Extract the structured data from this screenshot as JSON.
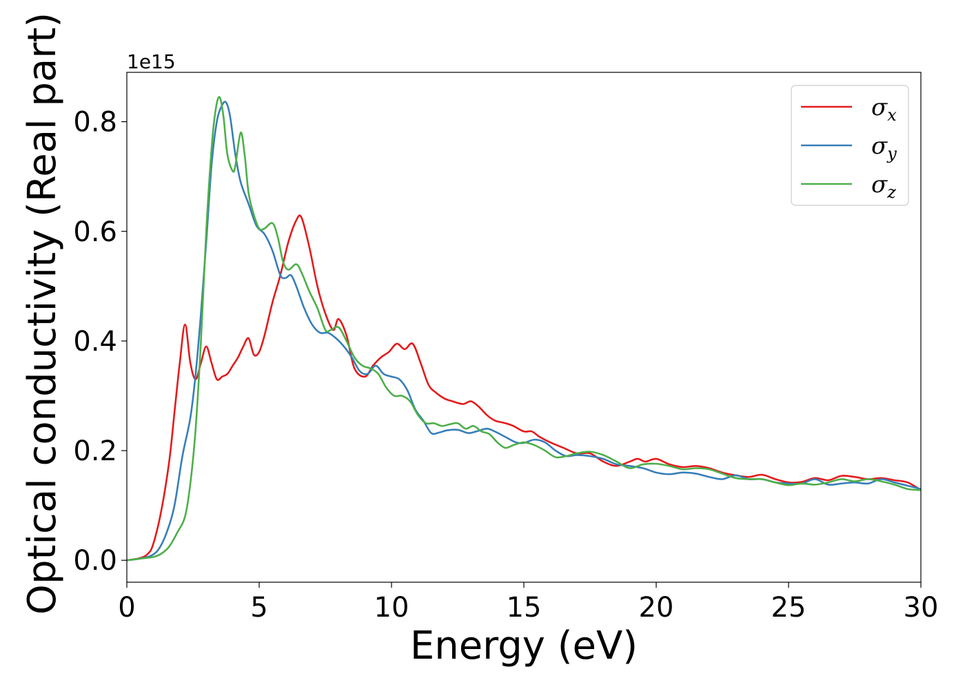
{
  "chart_data": {
    "type": "line",
    "title": "",
    "xlabel": "Energy (eV)",
    "ylabel": "Optical conductivity (Real part)",
    "y_offset_label": "1e15",
    "y_scale_factor": 1000000000000000.0,
    "xlim": [
      0,
      30
    ],
    "ylim": [
      -0.04,
      0.89
    ],
    "x_ticks": [
      0,
      5,
      10,
      15,
      20,
      25,
      30
    ],
    "x_tick_labels": [
      "0",
      "5",
      "10",
      "15",
      "20",
      "25",
      "30"
    ],
    "y_ticks": [
      0.0,
      0.2,
      0.4,
      0.6,
      0.8
    ],
    "y_tick_labels": [
      "0.0",
      "0.2",
      "0.4",
      "0.6",
      "0.8"
    ],
    "grid": false,
    "legend_position": "top-right",
    "series": [
      {
        "name": "σx",
        "symbol": "σ",
        "subscript": "x",
        "color": "#e41a1c",
        "x": [
          0,
          0.5,
          0.8,
          1.0,
          1.3,
          1.6,
          1.8,
          2.0,
          2.2,
          2.4,
          2.6,
          2.8,
          3.0,
          3.2,
          3.4,
          3.6,
          3.8,
          4.0,
          4.2,
          4.4,
          4.6,
          4.8,
          5.0,
          5.2,
          5.5,
          5.8,
          6.1,
          6.4,
          6.6,
          6.9,
          7.2,
          7.5,
          7.8,
          8.0,
          8.3,
          8.6,
          9.0,
          9.3,
          9.6,
          9.9,
          10.2,
          10.5,
          10.8,
          11.1,
          11.4,
          11.7,
          12.0,
          12.3,
          12.7,
          13.0,
          13.3,
          13.6,
          13.9,
          14.3,
          14.6,
          15.0,
          15.3,
          15.6,
          16.0,
          16.5,
          17.0,
          17.5,
          18.0,
          18.5,
          19.0,
          19.3,
          19.6,
          20.0,
          20.5,
          21.0,
          21.5,
          22.0,
          22.5,
          23.0,
          23.5,
          24.0,
          24.5,
          25.0,
          25.5,
          26.0,
          26.5,
          27.0,
          27.5,
          28.0,
          28.5,
          29.0,
          29.5,
          30.0
        ],
        "y": [
          0.0,
          0.004,
          0.012,
          0.03,
          0.09,
          0.18,
          0.27,
          0.36,
          0.43,
          0.36,
          0.33,
          0.36,
          0.39,
          0.36,
          0.33,
          0.335,
          0.34,
          0.355,
          0.37,
          0.39,
          0.405,
          0.375,
          0.38,
          0.41,
          0.47,
          0.52,
          0.58,
          0.62,
          0.625,
          0.57,
          0.5,
          0.45,
          0.42,
          0.44,
          0.41,
          0.35,
          0.335,
          0.355,
          0.37,
          0.38,
          0.395,
          0.385,
          0.395,
          0.36,
          0.32,
          0.305,
          0.295,
          0.29,
          0.285,
          0.29,
          0.28,
          0.265,
          0.255,
          0.25,
          0.245,
          0.235,
          0.235,
          0.225,
          0.215,
          0.205,
          0.195,
          0.195,
          0.18,
          0.172,
          0.18,
          0.185,
          0.18,
          0.185,
          0.175,
          0.17,
          0.172,
          0.168,
          0.16,
          0.155,
          0.152,
          0.156,
          0.148,
          0.142,
          0.143,
          0.15,
          0.146,
          0.154,
          0.152,
          0.148,
          0.15,
          0.146,
          0.142,
          0.128
        ]
      },
      {
        "name": "σy",
        "symbol": "σ",
        "subscript": "y",
        "color": "#377eb8",
        "x": [
          0,
          0.5,
          0.9,
          1.2,
          1.5,
          1.8,
          2.1,
          2.4,
          2.6,
          2.8,
          3.0,
          3.2,
          3.4,
          3.6,
          3.75,
          3.9,
          4.1,
          4.3,
          4.6,
          4.9,
          5.2,
          5.5,
          5.8,
          6.0,
          6.2,
          6.4,
          6.7,
          7.0,
          7.3,
          7.6,
          7.9,
          8.2,
          8.5,
          8.8,
          9.1,
          9.4,
          9.7,
          10.0,
          10.3,
          10.6,
          10.9,
          11.2,
          11.5,
          11.8,
          12.1,
          12.5,
          12.9,
          13.2,
          13.6,
          13.9,
          14.3,
          14.7,
          15.0,
          15.4,
          15.8,
          16.2,
          16.6,
          17.0,
          17.5,
          18.0,
          18.5,
          19.0,
          19.5,
          20.0,
          20.5,
          21.0,
          21.5,
          22.0,
          22.5,
          23.0,
          23.5,
          24.0,
          24.5,
          25.0,
          25.5,
          26.0,
          26.5,
          27.0,
          27.5,
          28.0,
          28.5,
          29.0,
          29.5,
          30.0
        ],
        "y": [
          0.0,
          0.003,
          0.008,
          0.02,
          0.05,
          0.1,
          0.19,
          0.26,
          0.34,
          0.45,
          0.58,
          0.72,
          0.8,
          0.83,
          0.835,
          0.81,
          0.74,
          0.69,
          0.65,
          0.61,
          0.595,
          0.565,
          0.52,
          0.515,
          0.52,
          0.5,
          0.46,
          0.43,
          0.415,
          0.415,
          0.405,
          0.39,
          0.37,
          0.345,
          0.34,
          0.355,
          0.34,
          0.335,
          0.33,
          0.31,
          0.275,
          0.255,
          0.232,
          0.233,
          0.237,
          0.238,
          0.232,
          0.235,
          0.24,
          0.235,
          0.225,
          0.215,
          0.214,
          0.22,
          0.215,
          0.2,
          0.19,
          0.192,
          0.19,
          0.185,
          0.175,
          0.172,
          0.168,
          0.16,
          0.157,
          0.16,
          0.158,
          0.152,
          0.148,
          0.155,
          0.148,
          0.148,
          0.142,
          0.14,
          0.14,
          0.148,
          0.138,
          0.14,
          0.142,
          0.14,
          0.148,
          0.142,
          0.136,
          0.13
        ]
      },
      {
        "name": "σz",
        "symbol": "σ",
        "subscript": "z",
        "color": "#4daf4a",
        "x": [
          0,
          0.5,
          1.0,
          1.3,
          1.6,
          1.9,
          2.2,
          2.4,
          2.6,
          2.8,
          3.0,
          3.2,
          3.35,
          3.5,
          3.65,
          3.8,
          4.0,
          4.1,
          4.3,
          4.45,
          4.6,
          4.8,
          5.0,
          5.2,
          5.5,
          5.7,
          5.9,
          6.1,
          6.4,
          6.6,
          6.9,
          7.2,
          7.5,
          7.7,
          8.0,
          8.3,
          8.6,
          8.9,
          9.2,
          9.5,
          9.8,
          10.1,
          10.4,
          10.7,
          11.0,
          11.3,
          11.6,
          11.9,
          12.2,
          12.5,
          12.8,
          13.1,
          13.4,
          13.7,
          14.0,
          14.3,
          14.6,
          15.0,
          15.4,
          15.8,
          16.2,
          16.6,
          17.0,
          17.5,
          18.0,
          18.5,
          19.0,
          19.5,
          20.0,
          20.5,
          21.0,
          21.5,
          22.0,
          22.5,
          23.0,
          23.5,
          24.0,
          24.5,
          25.0,
          25.5,
          26.0,
          26.5,
          27.0,
          27.5,
          28.0,
          28.5,
          29.0,
          29.5,
          30.0
        ],
        "y": [
          0.0,
          0.003,
          0.006,
          0.012,
          0.025,
          0.05,
          0.08,
          0.14,
          0.24,
          0.4,
          0.6,
          0.75,
          0.82,
          0.845,
          0.81,
          0.74,
          0.71,
          0.72,
          0.78,
          0.74,
          0.67,
          0.63,
          0.605,
          0.605,
          0.615,
          0.59,
          0.545,
          0.53,
          0.54,
          0.525,
          0.49,
          0.46,
          0.42,
          0.42,
          0.425,
          0.4,
          0.37,
          0.355,
          0.35,
          0.34,
          0.315,
          0.3,
          0.3,
          0.29,
          0.265,
          0.25,
          0.25,
          0.245,
          0.248,
          0.25,
          0.24,
          0.245,
          0.235,
          0.23,
          0.215,
          0.205,
          0.21,
          0.215,
          0.21,
          0.2,
          0.188,
          0.19,
          0.195,
          0.198,
          0.192,
          0.18,
          0.168,
          0.175,
          0.176,
          0.172,
          0.166,
          0.168,
          0.166,
          0.158,
          0.15,
          0.148,
          0.148,
          0.142,
          0.137,
          0.14,
          0.138,
          0.142,
          0.148,
          0.144,
          0.148,
          0.144,
          0.138,
          0.13,
          0.128
        ]
      }
    ]
  }
}
